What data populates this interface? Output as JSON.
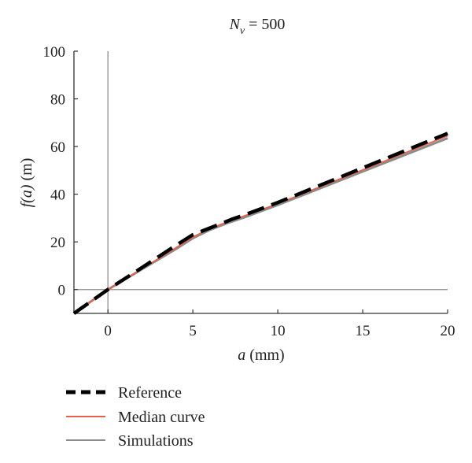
{
  "chart_data": {
    "type": "line",
    "title_var": "N",
    "title_sub": "v",
    "title_rest": " = 500",
    "xlabel_var": "a",
    "xlabel_unit": " (mm)",
    "ylabel_pre": "f",
    "ylabel_var": "(a)",
    "ylabel_unit": " (m)",
    "xlim": [
      -2,
      20
    ],
    "ylim": [
      -10,
      100
    ],
    "xticks": [
      0,
      5,
      10,
      15,
      20
    ],
    "yticks": [
      0,
      20,
      40,
      60,
      80,
      100
    ],
    "zero_axes": true,
    "grid": false,
    "legend_position": "bottom",
    "series": [
      {
        "name": "Simulations",
        "color": "#8c8c8c",
        "style": "solid",
        "x": [
          -2,
          0,
          2,
          4,
          5,
          6,
          7,
          8,
          10,
          15,
          20
        ],
        "y": [
          -10,
          0,
          8.5,
          17,
          21.5,
          25,
          27.8,
          30.2,
          35.5,
          49.5,
          63.5
        ]
      },
      {
        "name": "Median curve",
        "color": "#e8604a",
        "style": "solid",
        "x": [
          -2,
          0,
          2,
          4,
          5,
          6,
          7,
          8,
          10,
          15,
          20
        ],
        "y": [
          -10,
          0,
          8.7,
          17.5,
          22,
          25.5,
          28.3,
          30.8,
          36,
          50.2,
          64.5
        ]
      },
      {
        "name": "Reference",
        "color": "#000000",
        "style": "dashed",
        "x": [
          -2,
          0,
          2,
          4,
          5,
          6,
          7,
          7.3,
          8,
          10,
          15,
          20
        ],
        "y": [
          -10,
          0,
          9.2,
          18.5,
          23,
          25.8,
          28.6,
          29.5,
          31.2,
          36.5,
          51,
          65.5
        ]
      }
    ],
    "legend": [
      "Reference",
      "Median curve",
      "Simulations"
    ]
  }
}
